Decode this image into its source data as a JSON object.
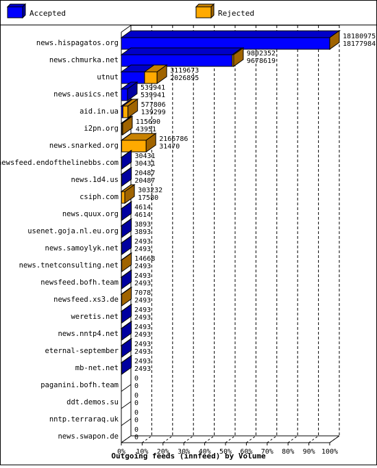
{
  "chart_data": {
    "type": "bar",
    "orientation": "horizontal",
    "title": "Outgoing feeds (innfeed) by Volume",
    "xlim": [
      0,
      100
    ],
    "x_unit": "%",
    "x_ticks": [
      "0%",
      "10%",
      "20%",
      "30%",
      "40%",
      "50%",
      "60%",
      "70%",
      "80%",
      "90%",
      "100%"
    ],
    "grid": true,
    "legend_position": "top",
    "max_value": 18180975,
    "series": [
      {
        "name": "Accepted",
        "color": "#0000ff",
        "side_color": "#0000a0",
        "top_color": "#0000c8"
      },
      {
        "name": "Rejected",
        "color": "#ffaa00",
        "side_color": "#a06400",
        "top_color": "#c88200"
      }
    ],
    "categories": [
      "news.hispagatos.org",
      "news.chmurka.net",
      "utnut",
      "news.ausics.net",
      "aid.in.ua",
      "i2pn.org",
      "news.snarked.org",
      "newsfeed.endofthelinebbs.com",
      "news.1d4.us",
      "csiph.com",
      "news.quux.org",
      "usenet.goja.nl.eu.org",
      "news.samoylyk.net",
      "news.tnetconsulting.net",
      "newsfeed.bofh.team",
      "newsfeed.xs3.de",
      "weretis.net",
      "news.nntp4.net",
      "eternal-september",
      "mb-net.net",
      "paganini.bofh.team",
      "ddt.demos.su",
      "nntp.terraraq.uk",
      "news.swapon.de"
    ],
    "offered": [
      18180975,
      9802352,
      3119673,
      539941,
      577806,
      115690,
      2166786,
      30431,
      20487,
      303232,
      4614,
      3893,
      2493,
      14668,
      2493,
      7078,
      2493,
      2493,
      2493,
      2493,
      0,
      0,
      0,
      0
    ],
    "accepted": [
      18177984,
      9678619,
      2026895,
      539941,
      139299,
      43951,
      31470,
      30431,
      20487,
      17580,
      4614,
      3893,
      2493,
      2493,
      2493,
      2493,
      2493,
      2493,
      2493,
      2493,
      0,
      0,
      0,
      0
    ]
  }
}
